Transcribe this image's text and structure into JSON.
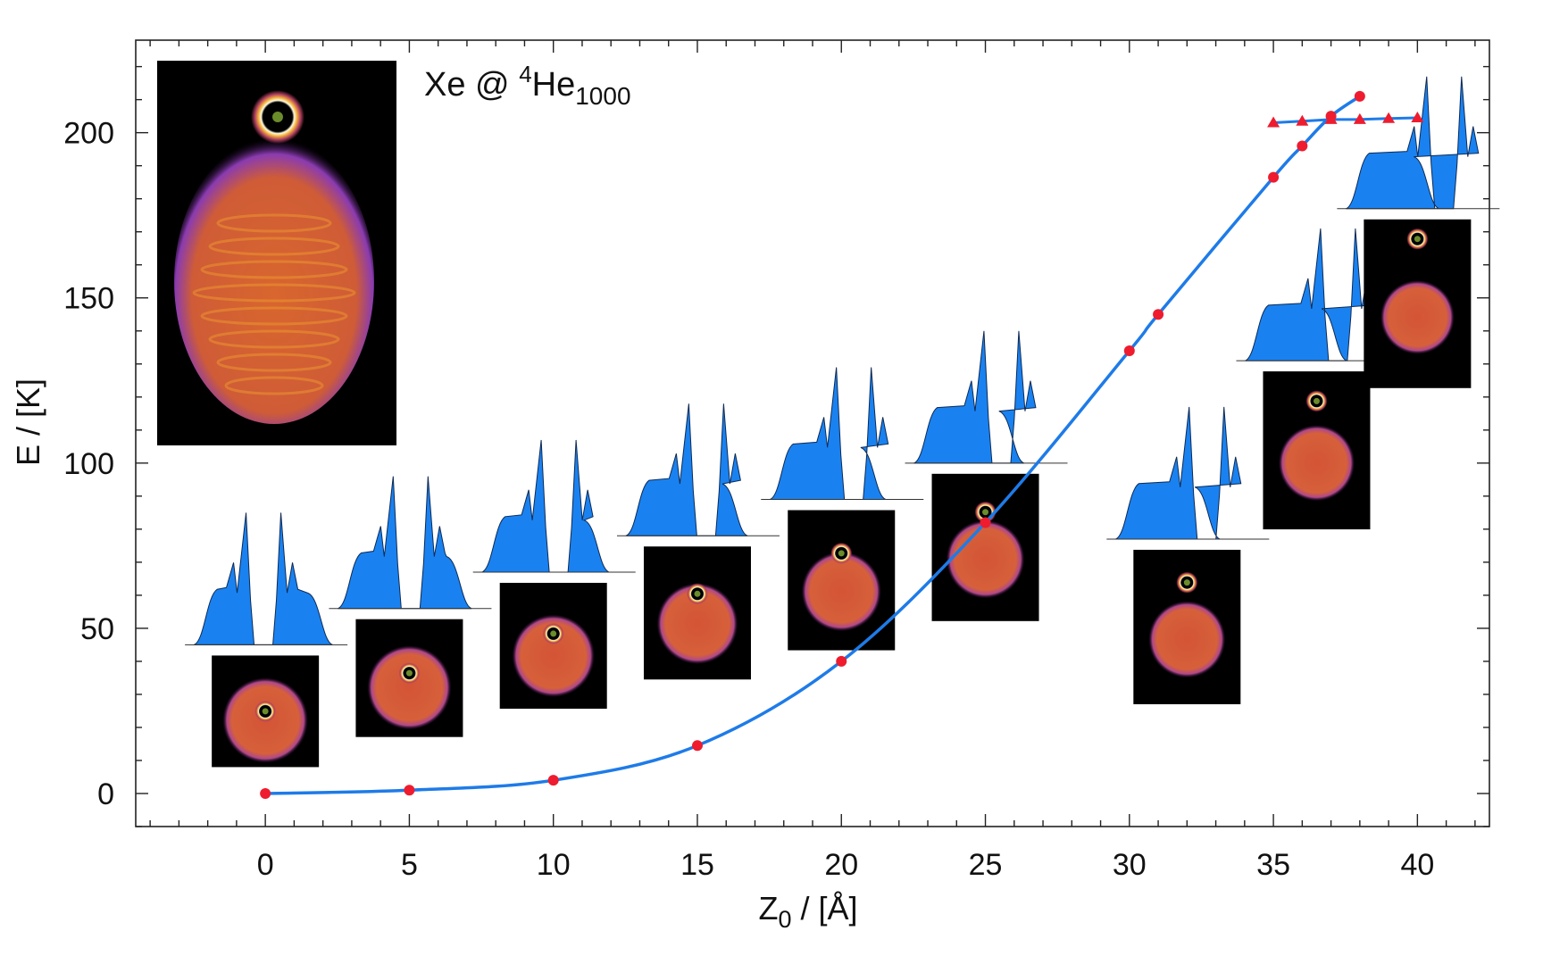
{
  "chart_data": {
    "type": "line",
    "title": "",
    "annotation": {
      "species": "Xe",
      "at": " @ ",
      "sup": "4",
      "base": "He",
      "sub": "1000"
    },
    "xlabel": {
      "base": "Z",
      "sub": "0",
      "rest": " / [Å]"
    },
    "ylabel": "E / [K]",
    "xlim": [
      -4.5,
      42.5
    ],
    "ylim": [
      -10,
      228
    ],
    "x_ticks": [
      0,
      5,
      10,
      15,
      20,
      25,
      30,
      35,
      40
    ],
    "y_ticks": [
      0,
      50,
      100,
      150,
      200
    ],
    "x_tick_labels": [
      "0",
      "5",
      "10",
      "15",
      "20",
      "25",
      "30",
      "35",
      "40"
    ],
    "y_tick_labels": [
      "0",
      "50",
      "100",
      "150",
      "200"
    ],
    "grid": false,
    "colors": {
      "curve": "#1e7be8",
      "points": "#ee1c2e",
      "density": "#1a82f0",
      "density_edge": "#0d2a55",
      "image_bg": "#000000",
      "droplet": "#d45a38",
      "xe_atom": "#6b8c2a"
    },
    "series": [
      {
        "marker": "circle",
        "x": [
          0,
          5,
          10,
          15,
          20,
          25,
          30,
          31,
          35,
          36,
          37,
          38
        ],
        "y": [
          0,
          1,
          4,
          14.5,
          40,
          82,
          134,
          145,
          186.5,
          196,
          205,
          211
        ]
      },
      {
        "marker": "triangle",
        "x": [
          35,
          36,
          37,
          38,
          39,
          40
        ],
        "y": [
          203,
          203.5,
          204,
          204,
          204.3,
          204.5
        ]
      }
    ],
    "insets": [
      {
        "z0": 0,
        "off": 0
      },
      {
        "z0": 5,
        "off": 0.35
      },
      {
        "z0": 10,
        "off": 0.8
      },
      {
        "z0": 15,
        "off": 1.2
      },
      {
        "z0": 20,
        "off": 1.6
      },
      {
        "z0": 25,
        "off": 2.0
      },
      {
        "z0": 32,
        "off": 2.4
      },
      {
        "z0": 36.5,
        "off": 2.6
      },
      {
        "z0": 40,
        "off": 3.2
      }
    ]
  }
}
